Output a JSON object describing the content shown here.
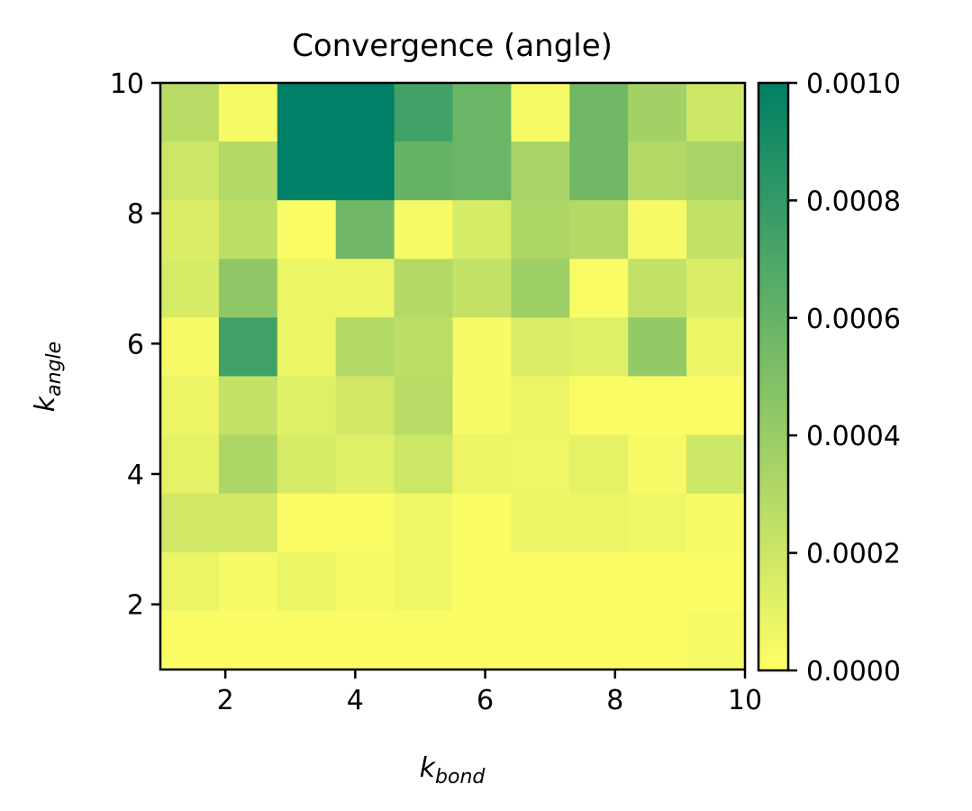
{
  "chart_data": {
    "type": "heatmap",
    "title": "Convergence (angle)",
    "xlabel": {
      "base": "k",
      "sub": "bond"
    },
    "ylabel": {
      "base": "k",
      "sub": "angle"
    },
    "xlim": [
      1,
      10
    ],
    "ylim": [
      1,
      10
    ],
    "x_ticks": [
      2,
      4,
      6,
      8,
      10
    ],
    "y_ticks": [
      2,
      4,
      6,
      8,
      10
    ],
    "grid": false,
    "colormap": "summer_r",
    "colors": {
      "low": "#ffff66",
      "high": "#008066"
    },
    "colorbar": {
      "vmin": 0.0,
      "vmax": 0.001,
      "ticks": [
        0.0,
        0.0002,
        0.0004,
        0.0006,
        0.0008,
        0.001
      ],
      "tick_labels": [
        "0.0000",
        "0.0002",
        "0.0004",
        "0.0006",
        "0.0008",
        "0.0010"
      ]
    },
    "row_order": "top-to-bottom",
    "z": [
      [
        0.00028,
        4e-05,
        0.001,
        0.001,
        0.00074,
        0.00058,
        4e-05,
        0.00056,
        0.00036,
        0.0002
      ],
      [
        0.0002,
        0.0003,
        0.001,
        0.001,
        0.0006,
        0.00058,
        0.00034,
        0.00056,
        0.0003,
        0.00034
      ],
      [
        0.00014,
        0.00026,
        2e-05,
        0.00056,
        4e-05,
        0.00016,
        0.00032,
        0.0003,
        4e-05,
        0.00024
      ],
      [
        0.00016,
        0.00044,
        8e-05,
        8e-05,
        0.0003,
        0.00024,
        0.00038,
        2e-05,
        0.00024,
        0.00014
      ],
      [
        4e-05,
        0.00074,
        8e-05,
        0.0003,
        0.00026,
        4e-05,
        0.00014,
        0.00012,
        0.00042,
        8e-05
      ],
      [
        8e-05,
        0.00024,
        0.00012,
        0.00018,
        0.00028,
        4e-05,
        8e-05,
        2e-05,
        2e-05,
        2e-05
      ],
      [
        0.0001,
        0.00032,
        0.00016,
        0.00012,
        0.0002,
        8e-05,
        6e-05,
        0.0001,
        4e-05,
        0.0002
      ],
      [
        0.00018,
        0.00018,
        2e-05,
        2e-05,
        6e-05,
        2e-05,
        8e-05,
        8e-05,
        6e-05,
        4e-05
      ],
      [
        8e-05,
        4e-05,
        8e-05,
        4e-05,
        6e-05,
        2e-05,
        2e-05,
        2e-05,
        2e-05,
        2e-05
      ],
      [
        2e-05,
        2e-05,
        2e-05,
        2e-05,
        2e-05,
        2e-05,
        2e-05,
        2e-05,
        2e-05,
        4e-05
      ]
    ]
  }
}
